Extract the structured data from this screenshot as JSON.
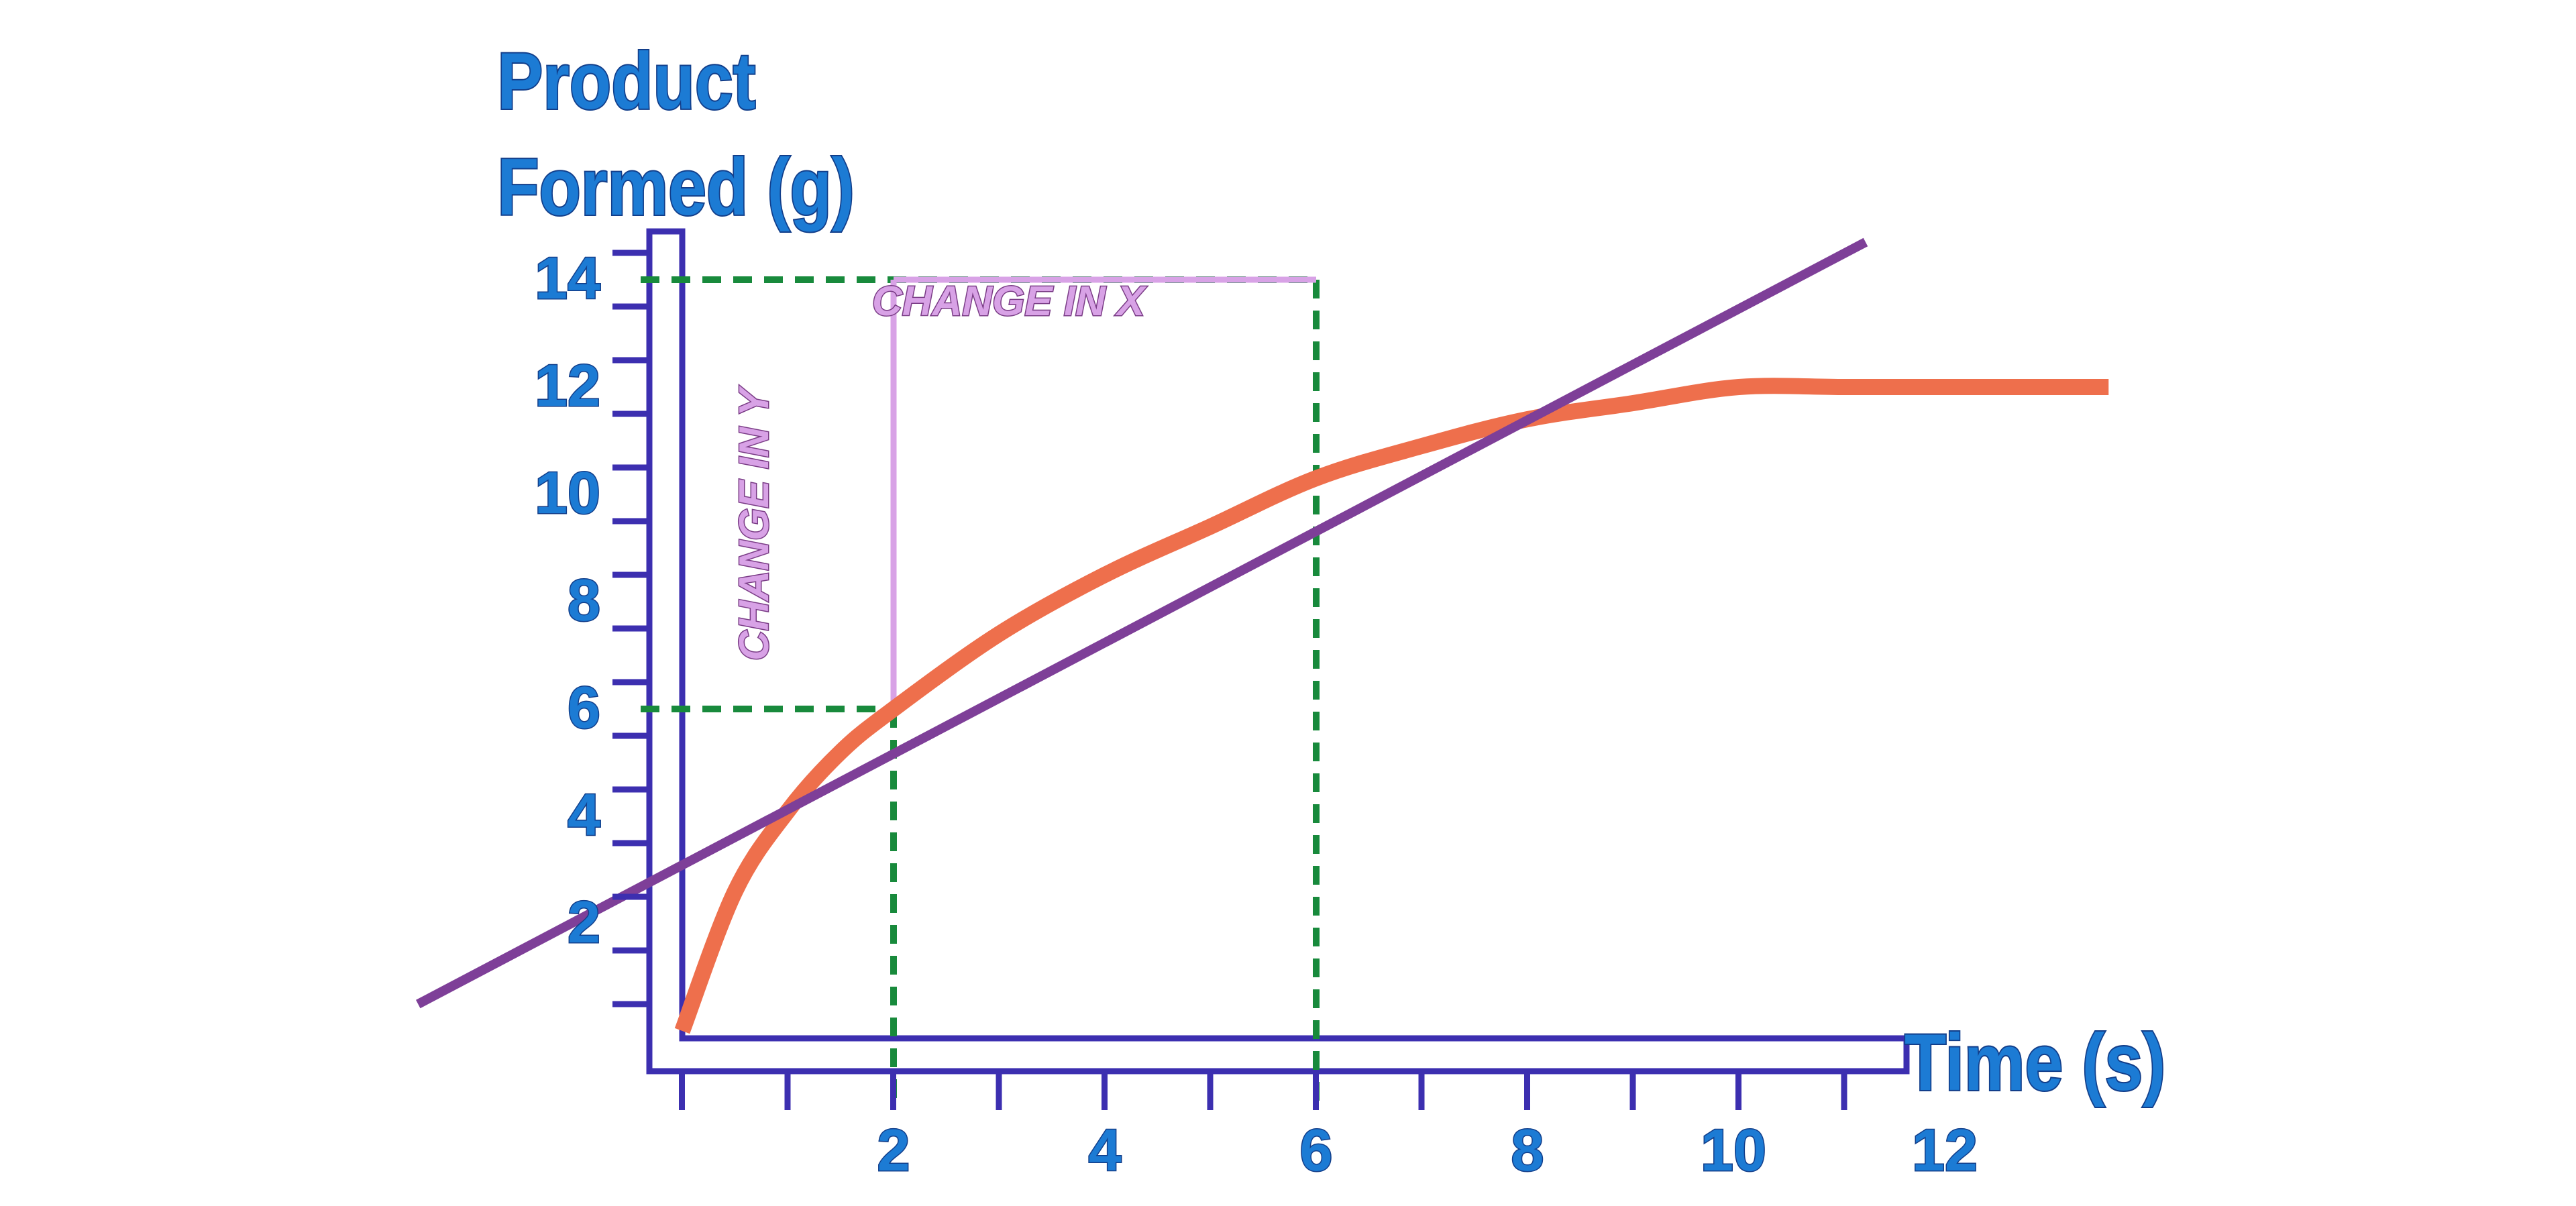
{
  "chart_data": {
    "type": "line",
    "title": "",
    "xlabel": "Time (s)",
    "ylabel_lines": [
      "Product",
      "Formed (g)"
    ],
    "xlim": [
      0,
      12
    ],
    "ylim": [
      0,
      15
    ],
    "x_ticks_labeled": [
      "2",
      "4",
      "6",
      "8",
      "10",
      "12"
    ],
    "y_ticks_labeled": [
      "2",
      "4",
      "6",
      "8",
      "10",
      "12",
      "14"
    ],
    "grid": false,
    "legend": "none",
    "series": [
      {
        "color": "#ee6f4c",
        "x": [
          0,
          0.5,
          1,
          1.5,
          2,
          3,
          4,
          5,
          6,
          7,
          8,
          9,
          10,
          11,
          12,
          13.5
        ],
        "y": [
          0,
          2.6,
          4.1,
          5.2,
          6.0,
          7.4,
          8.5,
          9.4,
          10.3,
          10.9,
          11.4,
          11.7,
          12.0,
          12.0,
          12.0,
          12.0
        ]
      },
      {
        "color": "#7e3f98",
        "x": [
          -2.5,
          11.2
        ],
        "y": [
          0.5,
          14.7
        ]
      }
    ],
    "guides": [
      {
        "x": 2,
        "y": 6,
        "color": "#188a3c"
      },
      {
        "x": 6,
        "y": 14,
        "color": "#188a3c"
      }
    ],
    "annotations": {
      "change_in_x": "CHANGE IN X",
      "change_in_y": "CHANGE IN Y",
      "color": "#d8a2e6"
    },
    "axis_color": "#3c2fb0"
  }
}
